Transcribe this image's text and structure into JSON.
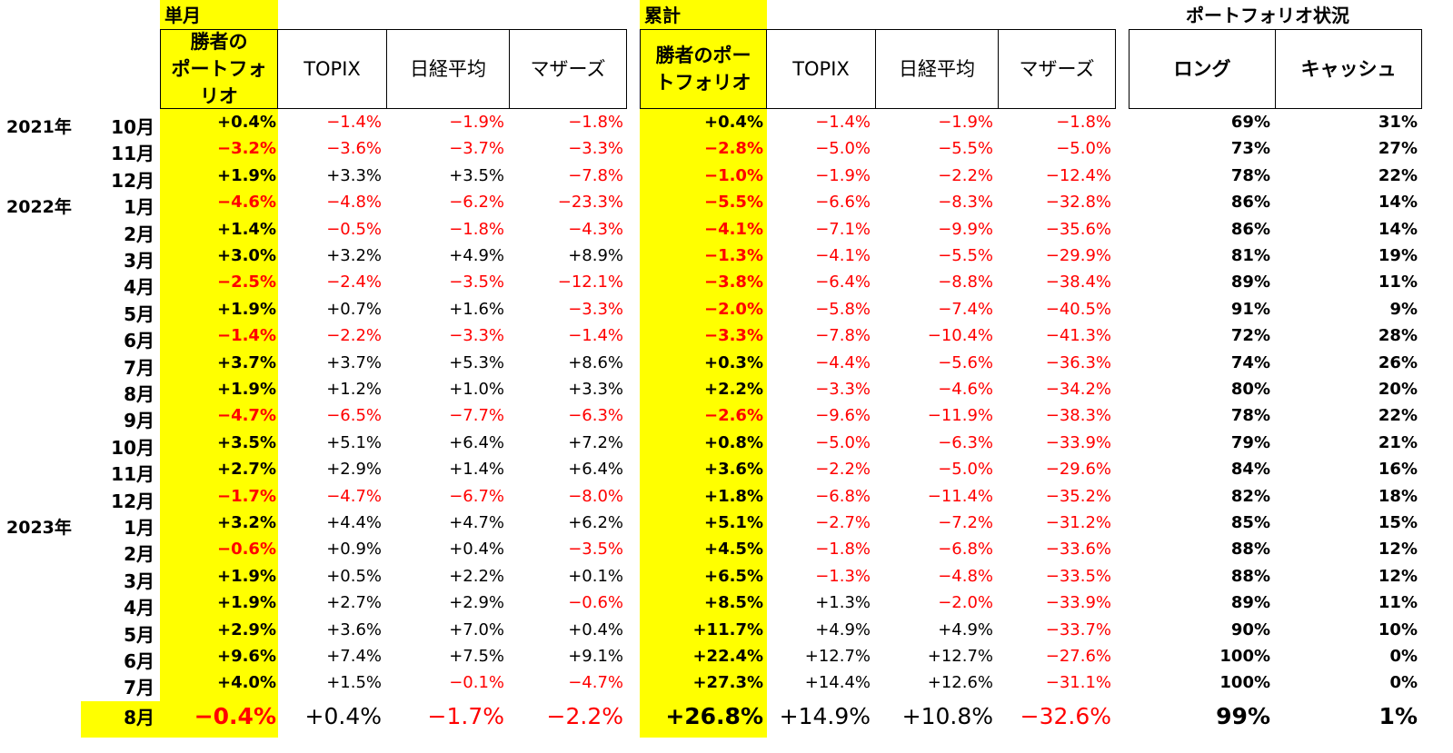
{
  "headers": {
    "monthly": "単月",
    "cumulative": "累計",
    "portfolio_status": "ポートフォリオ状況"
  },
  "columns": {
    "winner_monthly": "勝者の\nポートフォ\nリオ",
    "topix": "TOPIX",
    "nikkei": "日経平均",
    "mothers": "マザーズ",
    "winner_cum": "勝者のポー\nトフォリオ",
    "topix_cum": "TOPIX",
    "nikkei_cum": "日経平均",
    "mothers_cum": "マザーズ",
    "long": "ロング",
    "cash": "キャッシュ"
  },
  "rows": [
    {
      "year": "2021年",
      "month": "10月",
      "m": [
        "+0.4%",
        "−1.4%",
        "−1.9%",
        "−1.8%"
      ],
      "c": [
        "+0.4%",
        "−1.4%",
        "−1.9%",
        "−1.8%"
      ],
      "long": "69%",
      "cash": "31%"
    },
    {
      "year": "",
      "month": "11月",
      "m": [
        "−3.2%",
        "−3.6%",
        "−3.7%",
        "−3.3%"
      ],
      "c": [
        "−2.8%",
        "−5.0%",
        "−5.5%",
        "−5.0%"
      ],
      "long": "73%",
      "cash": "27%"
    },
    {
      "year": "",
      "month": "12月",
      "m": [
        "+1.9%",
        "+3.3%",
        "+3.5%",
        "−7.8%"
      ],
      "c": [
        "−1.0%",
        "−1.9%",
        "−2.2%",
        "−12.4%"
      ],
      "long": "78%",
      "cash": "22%"
    },
    {
      "year": "2022年",
      "month": "1月",
      "m": [
        "−4.6%",
        "−4.8%",
        "−6.2%",
        "−23.3%"
      ],
      "c": [
        "−5.5%",
        "−6.6%",
        "−8.3%",
        "−32.8%"
      ],
      "long": "86%",
      "cash": "14%"
    },
    {
      "year": "",
      "month": "2月",
      "m": [
        "+1.4%",
        "−0.5%",
        "−1.8%",
        "−4.3%"
      ],
      "c": [
        "−4.1%",
        "−7.1%",
        "−9.9%",
        "−35.6%"
      ],
      "long": "86%",
      "cash": "14%"
    },
    {
      "year": "",
      "month": "3月",
      "m": [
        "+3.0%",
        "+3.2%",
        "+4.9%",
        "+8.9%"
      ],
      "c": [
        "−1.3%",
        "−4.1%",
        "−5.5%",
        "−29.9%"
      ],
      "long": "81%",
      "cash": "19%"
    },
    {
      "year": "",
      "month": "4月",
      "m": [
        "−2.5%",
        "−2.4%",
        "−3.5%",
        "−12.1%"
      ],
      "c": [
        "−3.8%",
        "−6.4%",
        "−8.8%",
        "−38.4%"
      ],
      "long": "89%",
      "cash": "11%"
    },
    {
      "year": "",
      "month": "5月",
      "m": [
        "+1.9%",
        "+0.7%",
        "+1.6%",
        "−3.3%"
      ],
      "c": [
        "−2.0%",
        "−5.8%",
        "−7.4%",
        "−40.5%"
      ],
      "long": "91%",
      "cash": "9%"
    },
    {
      "year": "",
      "month": "6月",
      "m": [
        "−1.4%",
        "−2.2%",
        "−3.3%",
        "−1.4%"
      ],
      "c": [
        "−3.3%",
        "−7.8%",
        "−10.4%",
        "−41.3%"
      ],
      "long": "72%",
      "cash": "28%"
    },
    {
      "year": "",
      "month": "7月",
      "m": [
        "+3.7%",
        "+3.7%",
        "+5.3%",
        "+8.6%"
      ],
      "c": [
        "+0.3%",
        "−4.4%",
        "−5.6%",
        "−36.3%"
      ],
      "long": "74%",
      "cash": "26%"
    },
    {
      "year": "",
      "month": "8月",
      "m": [
        "+1.9%",
        "+1.2%",
        "+1.0%",
        "+3.3%"
      ],
      "c": [
        "+2.2%",
        "−3.3%",
        "−4.6%",
        "−34.2%"
      ],
      "long": "80%",
      "cash": "20%"
    },
    {
      "year": "",
      "month": "9月",
      "m": [
        "−4.7%",
        "−6.5%",
        "−7.7%",
        "−6.3%"
      ],
      "c": [
        "−2.6%",
        "−9.6%",
        "−11.9%",
        "−38.3%"
      ],
      "long": "78%",
      "cash": "22%"
    },
    {
      "year": "",
      "month": "10月",
      "m": [
        "+3.5%",
        "+5.1%",
        "+6.4%",
        "+7.2%"
      ],
      "c": [
        "+0.8%",
        "−5.0%",
        "−6.3%",
        "−33.9%"
      ],
      "long": "79%",
      "cash": "21%"
    },
    {
      "year": "",
      "month": "11月",
      "m": [
        "+2.7%",
        "+2.9%",
        "+1.4%",
        "+6.4%"
      ],
      "c": [
        "+3.6%",
        "−2.2%",
        "−5.0%",
        "−29.6%"
      ],
      "long": "84%",
      "cash": "16%"
    },
    {
      "year": "",
      "month": "12月",
      "m": [
        "−1.7%",
        "−4.7%",
        "−6.7%",
        "−8.0%"
      ],
      "c": [
        "+1.8%",
        "−6.8%",
        "−11.4%",
        "−35.2%"
      ],
      "long": "82%",
      "cash": "18%"
    },
    {
      "year": "2023年",
      "month": "1月",
      "m": [
        "+3.2%",
        "+4.4%",
        "+4.7%",
        "+6.2%"
      ],
      "c": [
        "+5.1%",
        "−2.7%",
        "−7.2%",
        "−31.2%"
      ],
      "long": "85%",
      "cash": "15%"
    },
    {
      "year": "",
      "month": "2月",
      "m": [
        "−0.6%",
        "+0.9%",
        "+0.4%",
        "−3.5%"
      ],
      "c": [
        "+4.5%",
        "−1.8%",
        "−6.8%",
        "−33.6%"
      ],
      "long": "88%",
      "cash": "12%"
    },
    {
      "year": "",
      "month": "3月",
      "m": [
        "+1.9%",
        "+0.5%",
        "+2.2%",
        "+0.1%"
      ],
      "c": [
        "+6.5%",
        "−1.3%",
        "−4.8%",
        "−33.5%"
      ],
      "long": "88%",
      "cash": "12%"
    },
    {
      "year": "",
      "month": "4月",
      "m": [
        "+1.9%",
        "+2.7%",
        "+2.9%",
        "−0.6%"
      ],
      "c": [
        "+8.5%",
        "+1.3%",
        "−2.0%",
        "−33.9%"
      ],
      "long": "89%",
      "cash": "11%"
    },
    {
      "year": "",
      "month": "5月",
      "m": [
        "+2.9%",
        "+3.6%",
        "+7.0%",
        "+0.4%"
      ],
      "c": [
        "+11.7%",
        "+4.9%",
        "+4.9%",
        "−33.7%"
      ],
      "long": "90%",
      "cash": "10%"
    },
    {
      "year": "",
      "month": "6月",
      "m": [
        "+9.6%",
        "+7.4%",
        "+7.5%",
        "+9.1%"
      ],
      "c": [
        "+22.4%",
        "+12.7%",
        "+12.7%",
        "−27.6%"
      ],
      "long": "100%",
      "cash": "0%"
    },
    {
      "year": "",
      "month": "7月",
      "m": [
        "+4.0%",
        "+1.5%",
        "−0.1%",
        "−4.7%"
      ],
      "c": [
        "+27.3%",
        "+14.4%",
        "+12.6%",
        "−31.1%"
      ],
      "long": "100%",
      "cash": "0%"
    },
    {
      "year": "",
      "month": "8月",
      "m": [
        "−0.4%",
        "+0.4%",
        "−1.7%",
        "−2.2%"
      ],
      "c": [
        "+26.8%",
        "+14.9%",
        "+10.8%",
        "−32.6%"
      ],
      "long": "99%",
      "cash": "1%"
    }
  ]
}
